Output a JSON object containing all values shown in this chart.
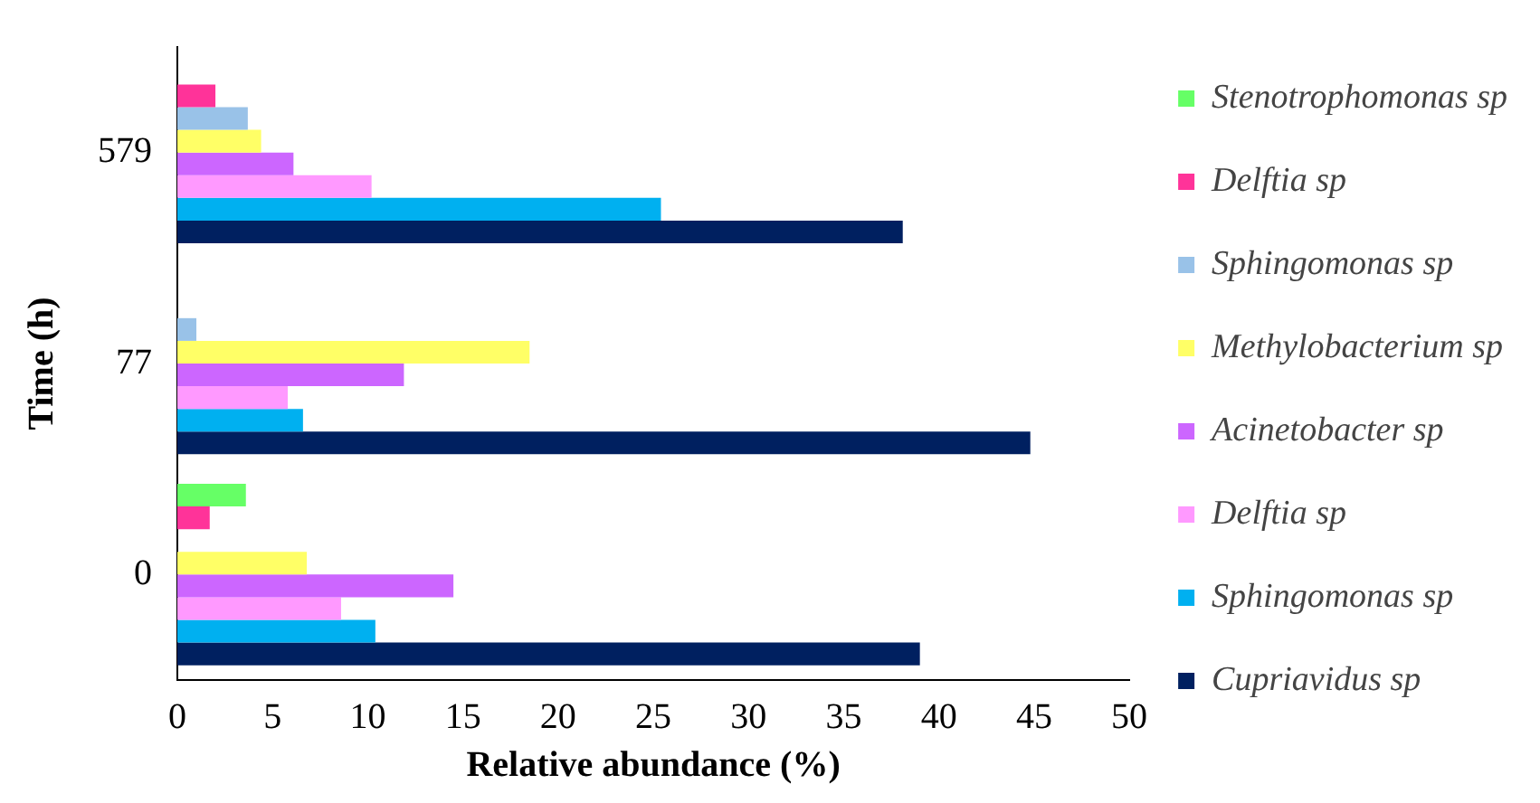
{
  "chart_data": {
    "type": "bar",
    "orientation": "horizontal",
    "xlabel": "Relative abundance (%)",
    "ylabel": "Time (h)",
    "categories": [
      "579",
      "77",
      "0"
    ],
    "series": [
      {
        "name": "Stenotrophomonas sp",
        "color": "#66ff66",
        "values": [
          null,
          null,
          3.6
        ]
      },
      {
        "name": "Delftia sp",
        "color": "#ff3399",
        "values": [
          2.0,
          null,
          1.7
        ]
      },
      {
        "name": "Sphingomonas sp",
        "color": "#99c2e8",
        "values": [
          3.7,
          1.0,
          null
        ]
      },
      {
        "name": "Methylobacterium sp",
        "color": "#ffff66",
        "values": [
          4.4,
          18.5,
          6.8
        ]
      },
      {
        "name": "Acinetobacter sp",
        "color": "#cc66ff",
        "values": [
          6.1,
          11.9,
          14.5
        ]
      },
      {
        "name": "Delftia sp",
        "color": "#ff99ff",
        "values": [
          10.2,
          5.8,
          8.6
        ]
      },
      {
        "name": "Sphingomonas sp",
        "color": "#00b0f0",
        "values": [
          25.4,
          6.6,
          10.4
        ]
      },
      {
        "name": "Cupriavidus sp",
        "color": "#002060",
        "values": [
          38.1,
          44.8,
          39.0
        ]
      }
    ],
    "xlim": [
      0,
      50
    ],
    "xticks": [
      0,
      5,
      10,
      15,
      20,
      25,
      30,
      35,
      40,
      45,
      50
    ],
    "grid": false,
    "legend": "right"
  }
}
